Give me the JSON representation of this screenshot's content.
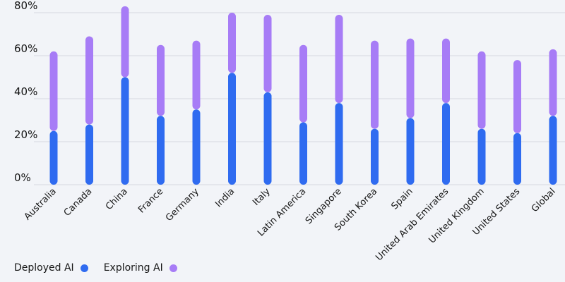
{
  "chart_data": {
    "type": "bar",
    "stacked": true,
    "title": "",
    "xlabel": "",
    "ylabel": "",
    "ylim": [
      0,
      80
    ],
    "yticks": [
      0,
      20,
      40,
      60,
      80
    ],
    "ytick_labels": [
      "0%",
      "20%",
      "40%",
      "60%",
      "80%"
    ],
    "grid": true,
    "legend_position": "bottom-left",
    "categories": [
      "Australia",
      "Canada",
      "China",
      "France",
      "Germany",
      "India",
      "Italy",
      "Latin America",
      "Singapore",
      "South Korea",
      "Spain",
      "United Arab Emirates",
      "United Kingdom",
      "United States",
      "Global"
    ],
    "series": [
      {
        "name": "Deployed AI",
        "color": "#2f6bf0",
        "values": [
          25,
          28,
          50,
          32,
          35,
          52,
          43,
          29,
          38,
          26,
          31,
          38,
          26,
          24,
          32
        ]
      },
      {
        "name": "Exploring AI",
        "color": "#a77cf6",
        "values": [
          37,
          41,
          33,
          33,
          32,
          28,
          36,
          36,
          41,
          41,
          37,
          30,
          36,
          34,
          31
        ]
      }
    ]
  }
}
